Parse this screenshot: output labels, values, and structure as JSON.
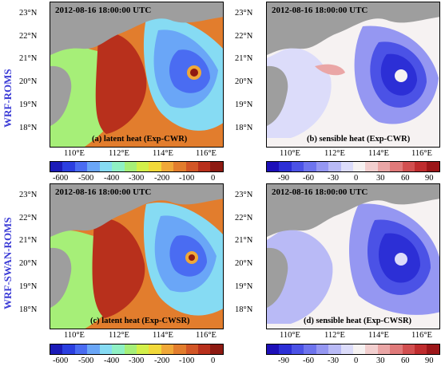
{
  "row_labels": [
    "WRF-ROMS",
    "WRF-SWAN-ROMS"
  ],
  "panels": [
    {
      "title": "2012-08-16 18:00:00 UTC",
      "label": "(a)  latent heat  (Exp-CWR)",
      "kind": "latent"
    },
    {
      "title": "2012-08-16 18:00:00 UTC",
      "label": "(b)  sensible heat  (Exp-CWR)",
      "kind": "sensible"
    },
    {
      "title": "2012-08-16 18:00:00 UTC",
      "label": "(c)  latent heat  (Exp-CWSR)",
      "kind": "latent"
    },
    {
      "title": "2012-08-16 18:00:00 UTC",
      "label": "(d)  sensible heat  (Exp-CWSR)",
      "kind": "sensible"
    }
  ],
  "lat_ticks": [
    "23°N",
    "22°N",
    "21°N",
    "20°N",
    "19°N",
    "18°N"
  ],
  "lon_ticks": [
    "110°E",
    "112°E",
    "114°E",
    "116°E"
  ],
  "latent_colorbar": {
    "labels": [
      "-600",
      "-500",
      "-400",
      "-300",
      "-200",
      "-100",
      "0"
    ],
    "colors": [
      "#1b1bb8",
      "#2b3fe0",
      "#4a6cf2",
      "#6aa6f7",
      "#86dbf3",
      "#8ff0c4",
      "#a6ef78",
      "#d3f04a",
      "#f2d93a",
      "#f0a838",
      "#e27d2d",
      "#d25626",
      "#b8301c",
      "#8e1a12"
    ]
  },
  "sensible_colorbar": {
    "labels": [
      "-90",
      "-60",
      "-30",
      "0",
      "30",
      "60",
      "90"
    ],
    "colors": [
      "#1d0fb8",
      "#2c2fd6",
      "#4b52e6",
      "#6e74ee",
      "#9597f2",
      "#b9baf6",
      "#dcdcfa",
      "#f6f2f2",
      "#f2cfcf",
      "#eaa6a6",
      "#e07a7a",
      "#d24f50",
      "#bf2c2e",
      "#9c1619"
    ]
  },
  "colors": {
    "land": "#9e9e9e",
    "row_label": "#3b3bd6"
  }
}
